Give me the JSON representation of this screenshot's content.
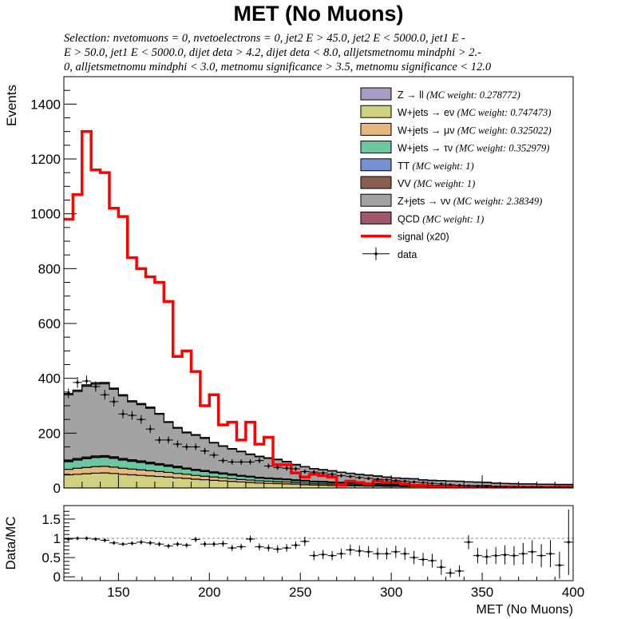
{
  "title": "MET (No Muons)",
  "selection": [
    "Selection: nvetomuons  =  0, nvetoelectrons  =  0, jet2 E > 45.0, jet2 E < 5000.0, jet1 E -",
    "E > 50.0, jet1 E < 5000.0, dijet deta > 4.2, dijet deta < 8.0, alljetsmetnomu mindphi > 2.-",
    "0, alljetsmetnomu mindphi < 3.0, metnomu significance > 3.5, metnomu significance < 12.0"
  ],
  "chart_data": [
    {
      "type": "area",
      "name": "main",
      "stacked": true,
      "ylabel": "Events",
      "xlim": [
        120,
        400
      ],
      "ylim": [
        0,
        1500
      ],
      "yticks": [
        0,
        200,
        400,
        600,
        800,
        1000,
        1200,
        1400
      ],
      "x_edges": [
        120,
        125,
        130,
        135,
        140,
        145,
        150,
        155,
        160,
        165,
        170,
        175,
        180,
        185,
        190,
        195,
        200,
        205,
        210,
        215,
        220,
        225,
        230,
        235,
        240,
        245,
        250,
        255,
        260,
        265,
        270,
        275,
        280,
        285,
        290,
        295,
        300,
        305,
        310,
        315,
        320,
        325,
        330,
        335,
        340,
        345,
        350,
        355,
        360,
        365,
        370,
        375,
        380,
        385,
        390,
        395,
        400
      ],
      "legend_position": "top-right",
      "series": [
        {
          "name": "W+jets → eν",
          "note": "(MC weight: 0.747473)",
          "color": "#cfd17f",
          "values": [
            48,
            50,
            52,
            54,
            55,
            53,
            50,
            48,
            46,
            44,
            42,
            40,
            37,
            35,
            32,
            30,
            28,
            26,
            24,
            22,
            20,
            18,
            17,
            16,
            15,
            14,
            12,
            11,
            10,
            9,
            9,
            8,
            8,
            7,
            7,
            6,
            6,
            5,
            5,
            5,
            4,
            4,
            4,
            4,
            3,
            3,
            3,
            3,
            3,
            2,
            2,
            2,
            2,
            2,
            2,
            2
          ]
        },
        {
          "name": "W+jets → μν",
          "note": "(MC weight: 0.325022)",
          "color": "#e6b77f",
          "values": [
            20,
            22,
            23,
            24,
            24,
            23,
            22,
            21,
            20,
            19,
            18,
            17,
            16,
            15,
            14,
            13,
            12,
            11,
            10,
            9,
            9,
            8,
            8,
            7,
            7,
            6,
            6,
            5,
            5,
            5,
            4,
            4,
            4,
            4,
            3,
            3,
            3,
            3,
            3,
            2,
            2,
            2,
            2,
            2,
            2,
            2,
            2,
            1,
            1,
            1,
            1,
            1,
            1,
            1,
            1,
            1
          ]
        },
        {
          "name": "W+jets → τν",
          "note": "(MC weight: 0.352979)",
          "color": "#6cc7a0",
          "values": [
            28,
            30,
            32,
            33,
            33,
            32,
            30,
            28,
            27,
            25,
            24,
            22,
            21,
            19,
            18,
            17,
            15,
            14,
            13,
            12,
            11,
            10,
            9,
            9,
            8,
            7,
            7,
            6,
            6,
            5,
            5,
            5,
            4,
            4,
            4,
            3,
            3,
            3,
            3,
            2,
            2,
            2,
            2,
            2,
            2,
            2,
            2,
            1,
            1,
            1,
            1,
            1,
            1,
            1,
            1,
            1
          ]
        },
        {
          "name": "TT",
          "note": "(MC weight: 1)",
          "color": "#7591d1",
          "values": [
            2,
            2,
            2,
            2,
            2,
            2,
            2,
            2,
            2,
            2,
            2,
            2,
            2,
            1,
            1,
            1,
            1,
            1,
            1,
            1,
            1,
            1,
            1,
            1,
            1,
            1,
            1,
            1,
            1,
            1,
            1,
            1,
            1,
            1,
            1,
            1,
            1,
            1,
            1,
            1,
            1,
            1,
            1,
            1,
            1,
            1,
            1,
            1,
            1,
            1,
            1,
            1,
            1,
            1,
            1,
            1
          ]
        },
        {
          "name": "VV",
          "note": "(MC weight: 1)",
          "color": "#8a5e4e",
          "values": [
            4,
            4,
            4,
            4,
            4,
            4,
            4,
            4,
            4,
            4,
            3,
            3,
            3,
            3,
            3,
            3,
            3,
            3,
            3,
            2,
            2,
            2,
            2,
            2,
            2,
            2,
            2,
            2,
            2,
            2,
            2,
            2,
            2,
            2,
            1,
            1,
            1,
            1,
            1,
            1,
            1,
            1,
            1,
            1,
            1,
            1,
            1,
            1,
            1,
            1,
            1,
            1,
            1,
            1,
            1,
            1
          ]
        },
        {
          "name": "Z+jets → νν",
          "note": "(MC weight: 2.38349)",
          "color": "#a3a3a3",
          "values": [
            238,
            244,
            258,
            262,
            262,
            246,
            228,
            211,
            205,
            197,
            180,
            155,
            139,
            128,
            124,
            117,
            105,
            97,
            91,
            86,
            79,
            75,
            71,
            68,
            62,
            54,
            49,
            45,
            42,
            40,
            36,
            33,
            30,
            28,
            27,
            25,
            22,
            21,
            20,
            18,
            17,
            16,
            15,
            14,
            13,
            12,
            11,
            10,
            9,
            9,
            8,
            8,
            7,
            7,
            6,
            6
          ]
        },
        {
          "name": "QCD",
          "note": "(MC weight: 1)",
          "color": "#9e5a6a",
          "values": [
            5,
            5,
            5,
            5,
            5,
            4,
            4,
            4,
            4,
            4,
            3,
            3,
            3,
            3,
            3,
            3,
            2,
            2,
            2,
            2,
            2,
            2,
            2,
            2,
            2,
            2,
            1,
            1,
            1,
            1,
            1,
            1,
            1,
            1,
            1,
            1,
            1,
            1,
            1,
            1,
            1,
            1,
            1,
            1,
            1,
            1,
            1,
            1,
            1,
            1,
            1,
            1,
            1,
            1,
            1,
            1
          ]
        },
        {
          "name": "Z → ll",
          "note": "(MC weight: 0.278772)",
          "color": "#a79cc3",
          "values": [
            0,
            0,
            0,
            0,
            0,
            0,
            0,
            0,
            0,
            0,
            0,
            0,
            0,
            0,
            0,
            0,
            0,
            0,
            0,
            0,
            0,
            0,
            0,
            0,
            0,
            0,
            0,
            0,
            0,
            0,
            0,
            0,
            0,
            0,
            0,
            0,
            0,
            0,
            0,
            0,
            0,
            0,
            0,
            0,
            0,
            0,
            0,
            0,
            0,
            0,
            0,
            0,
            0,
            0,
            0,
            0
          ]
        }
      ],
      "signal": {
        "name": "signal (x20)",
        "color": "#ff0000",
        "values": [
          980,
          1070,
          1300,
          1160,
          1150,
          1020,
          990,
          840,
          800,
          770,
          750,
          680,
          480,
          500,
          425,
          300,
          340,
          230,
          240,
          175,
          240,
          160,
          185,
          85,
          85,
          55,
          40,
          50,
          45,
          40,
          10,
          25,
          20,
          15,
          25,
          20,
          20,
          15,
          10,
          10,
          5,
          5,
          5,
          5,
          5,
          5,
          3,
          3,
          3,
          3,
          3,
          3,
          3,
          3,
          3,
          3
        ]
      },
      "data": {
        "name": "data",
        "x": [
          122.5,
          127.5,
          132.5,
          137.5,
          142.5,
          147.5,
          152.5,
          157.5,
          162.5,
          167.5,
          172.5,
          177.5,
          182.5,
          187.5,
          192.5,
          197.5,
          202.5,
          207.5,
          212.5,
          217.5,
          222.5,
          227.5,
          232.5,
          237.5,
          242.5,
          247.5,
          252.5,
          257.5,
          262.5,
          267.5,
          272.5,
          277.5,
          282.5,
          287.5,
          292.5,
          297.5,
          302.5,
          307.5,
          312.5,
          317.5,
          322.5,
          327.5,
          332.5,
          337.5,
          342.5,
          347.5,
          352.5,
          357.5,
          362.5,
          367.5,
          372.5,
          377.5,
          382.5,
          387.5,
          392.5,
          397.5
        ],
        "values": [
          345,
          385,
          390,
          370,
          340,
          315,
          270,
          265,
          250,
          215,
          175,
          175,
          160,
          150,
          150,
          135,
          120,
          100,
          95,
          95,
          95,
          100,
          80,
          75,
          72,
          70,
          60,
          58,
          55,
          50,
          45,
          42,
          38,
          35,
          32,
          30,
          27,
          25,
          22,
          20,
          17,
          15,
          12,
          10,
          8,
          7,
          6,
          5,
          4,
          4,
          3,
          3,
          3,
          2,
          2,
          2
        ],
        "errors": [
          18,
          20,
          20,
          19,
          18,
          18,
          16,
          16,
          16,
          15,
          13,
          13,
          13,
          12,
          12,
          12,
          11,
          10,
          10,
          10,
          10,
          10,
          9,
          9,
          9,
          8,
          8,
          8,
          7,
          7,
          7,
          6,
          6,
          6,
          6,
          5,
          5,
          5,
          5,
          4,
          4,
          4,
          3,
          3,
          3,
          3,
          2,
          2,
          2,
          2,
          2,
          2,
          2,
          1,
          1,
          1
        ]
      }
    },
    {
      "type": "scatter",
      "name": "ratio",
      "ylabel": "Data/MC",
      "xlabel": "MET (No Muons)",
      "xlim": [
        120,
        400
      ],
      "ylim": [
        -0.1,
        1.85
      ],
      "yticks": [
        0,
        0.5,
        1,
        1.5
      ],
      "yticklabels": [
        "0",
        "0.5",
        "1",
        "1.5"
      ],
      "xticks": [
        150,
        200,
        250,
        300,
        350,
        400
      ],
      "reference_line": 1,
      "x": [
        122.5,
        127.5,
        132.5,
        137.5,
        142.5,
        147.5,
        152.5,
        157.5,
        162.5,
        167.5,
        172.5,
        177.5,
        182.5,
        187.5,
        192.5,
        197.5,
        202.5,
        207.5,
        212.5,
        217.5,
        222.5,
        227.5,
        232.5,
        237.5,
        242.5,
        247.5,
        252.5,
        257.5,
        262.5,
        267.5,
        272.5,
        277.5,
        282.5,
        287.5,
        292.5,
        297.5,
        302.5,
        307.5,
        312.5,
        317.5,
        322.5,
        327.5,
        332.5,
        337.5,
        342.5,
        347.5,
        352.5,
        357.5,
        362.5,
        367.5,
        372.5,
        377.5,
        382.5,
        387.5,
        392.5,
        397.5
      ],
      "values": [
        0.98,
        1.0,
        1.0,
        0.98,
        0.95,
        0.88,
        0.85,
        0.87,
        0.9,
        0.88,
        0.85,
        0.8,
        0.85,
        0.82,
        0.97,
        0.85,
        0.85,
        0.86,
        0.75,
        0.78,
        0.98,
        0.78,
        0.75,
        0.72,
        0.75,
        0.82,
        0.92,
        0.55,
        0.58,
        0.55,
        0.6,
        0.7,
        0.67,
        0.65,
        0.6,
        0.6,
        0.65,
        0.6,
        0.5,
        0.45,
        0.42,
        0.25,
        0.1,
        0.15,
        0.9,
        0.55,
        0.52,
        0.55,
        0.57,
        0.55,
        0.6,
        0.65,
        0.55,
        0.6,
        0.3,
        0.9
      ],
      "errors": [
        0.05,
        0.05,
        0.05,
        0.05,
        0.05,
        0.05,
        0.05,
        0.05,
        0.06,
        0.06,
        0.06,
        0.06,
        0.06,
        0.06,
        0.07,
        0.07,
        0.07,
        0.08,
        0.08,
        0.08,
        0.09,
        0.09,
        0.09,
        0.1,
        0.1,
        0.1,
        0.12,
        0.12,
        0.12,
        0.12,
        0.13,
        0.14,
        0.14,
        0.15,
        0.15,
        0.15,
        0.16,
        0.16,
        0.17,
        0.17,
        0.18,
        0.2,
        0.12,
        0.15,
        0.18,
        0.2,
        0.2,
        0.22,
        0.25,
        0.25,
        0.28,
        0.3,
        0.3,
        0.35,
        0.35,
        0.85
      ]
    }
  ]
}
